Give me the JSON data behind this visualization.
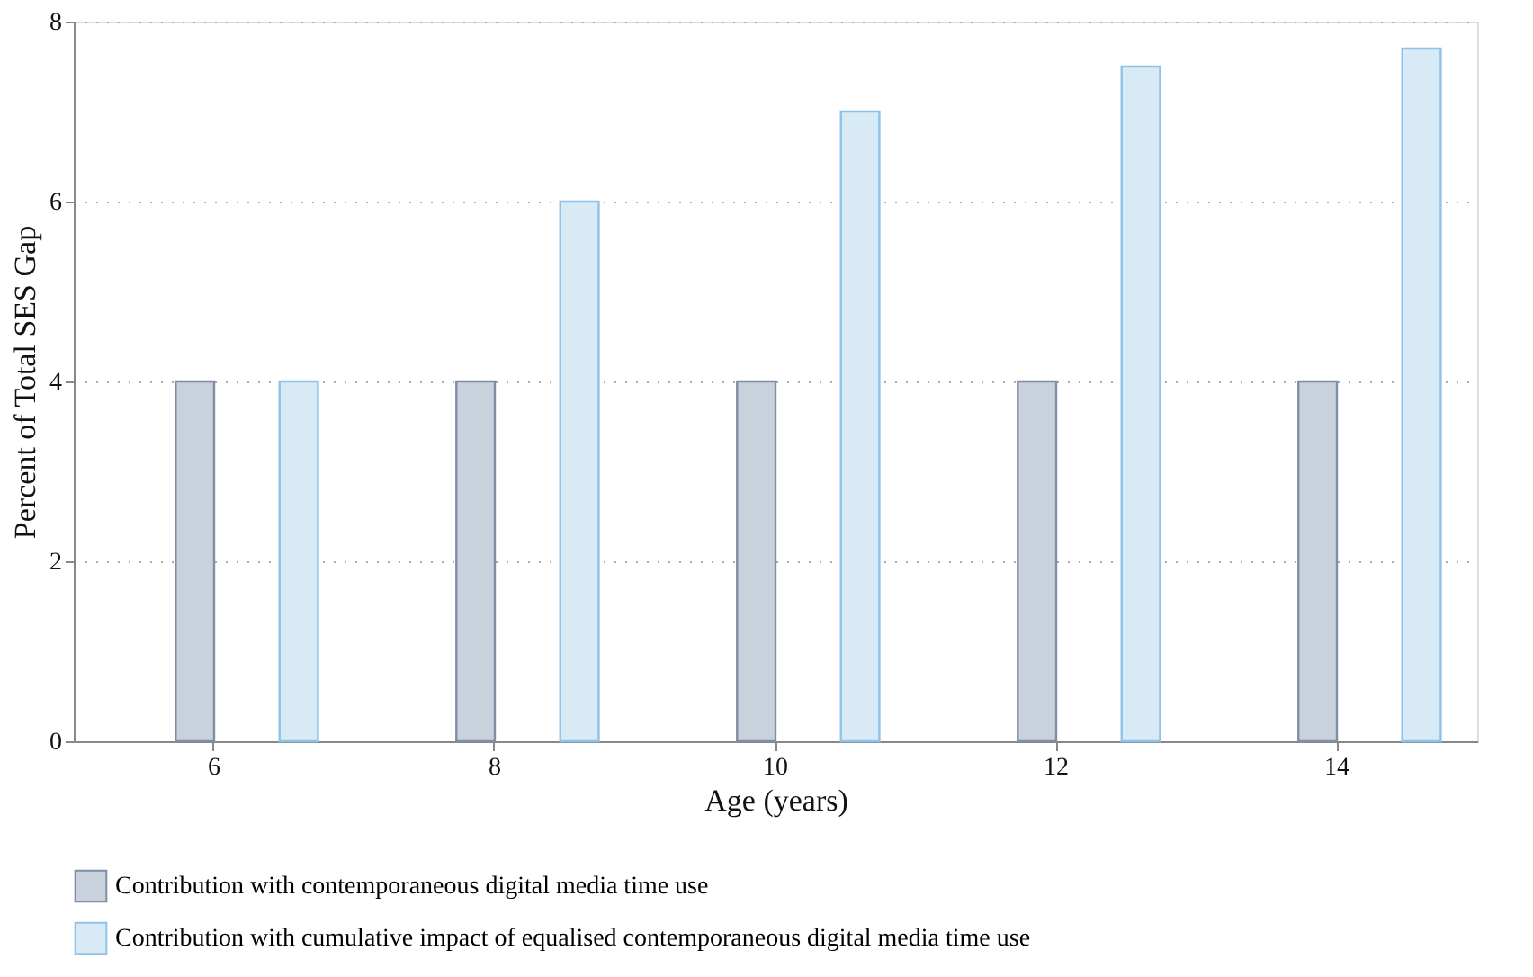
{
  "chart_data": {
    "type": "bar",
    "xlabel": "Age (years)",
    "ylabel": "Percent of Total SES Gap",
    "categories": [
      "6",
      "8",
      "10",
      "12",
      "14"
    ],
    "series": [
      {
        "name": "Contribution with contemporaneous digital media time use",
        "color": "#c9d1dc",
        "values": [
          4,
          4,
          4,
          4,
          4
        ]
      },
      {
        "name": "Contribution with cumulative impact of equalised contemporaneous digital media time use",
        "color": "#d9eaf7",
        "values": [
          4,
          6,
          7,
          7.5,
          7.7
        ]
      }
    ],
    "ylim": [
      0,
      8
    ],
    "yticks": [
      0,
      2,
      4,
      6,
      8
    ],
    "grid": "y",
    "legend": "bottom"
  }
}
